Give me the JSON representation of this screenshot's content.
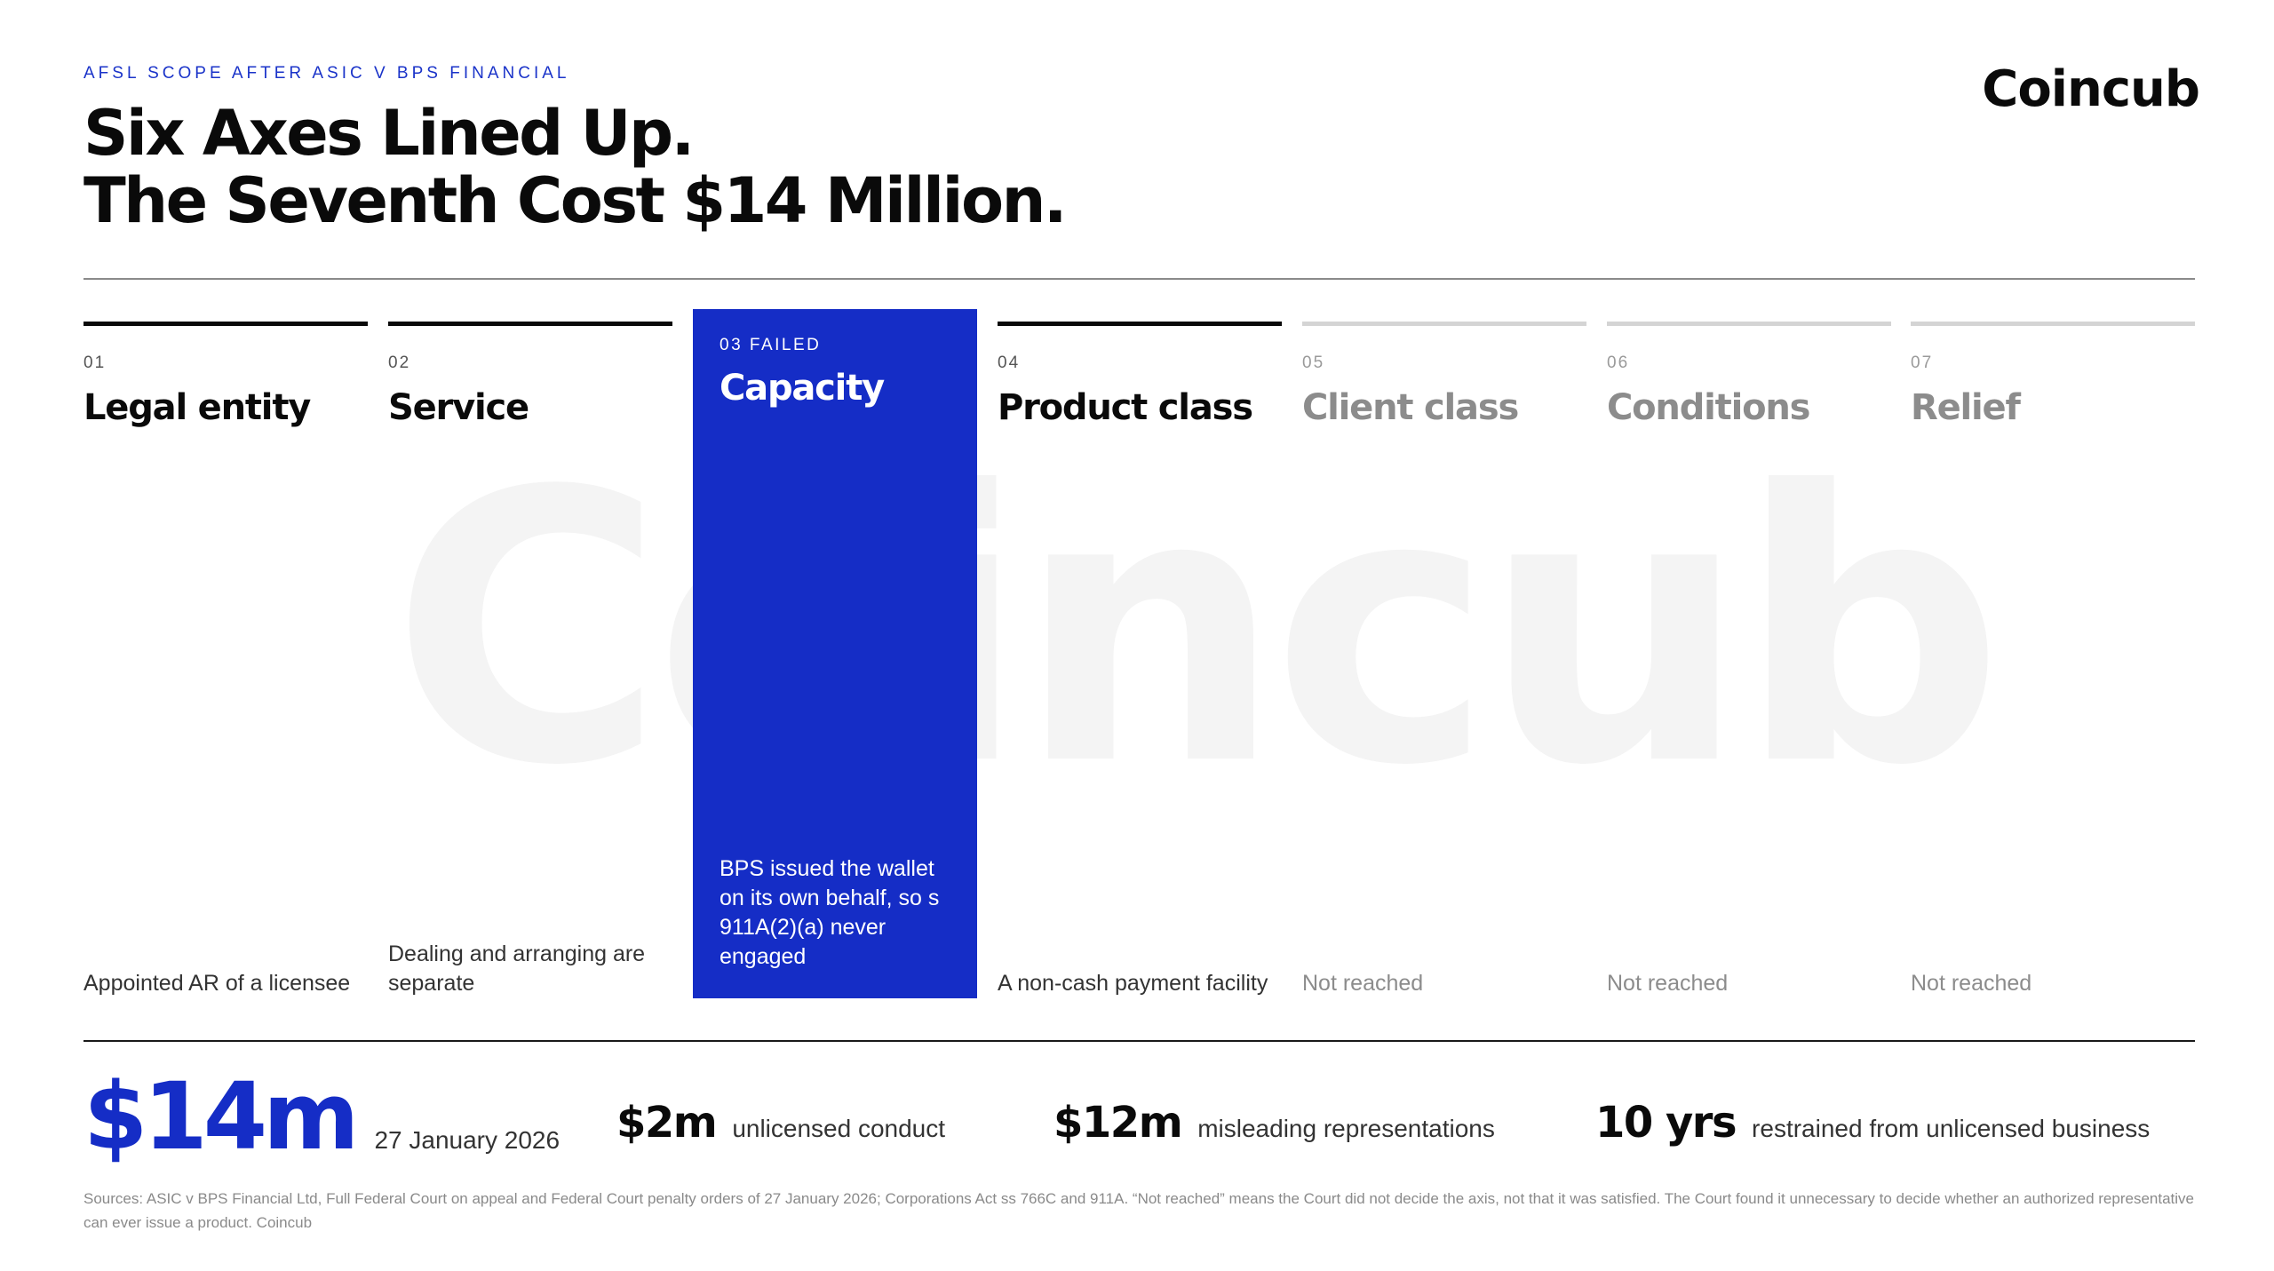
{
  "watermark": "Coincub",
  "header": {
    "eyebrow": "AFSL SCOPE AFTER ASIC V BPS FINANCIAL",
    "title_line1": "Six Axes Lined Up.",
    "title_line2": "The Seventh Cost $14 Million.",
    "brand": "Coincub"
  },
  "colors": {
    "accent": "#152dc6",
    "ink": "#0a0a0a",
    "muted": "#8c8c8c"
  },
  "axes": [
    {
      "num": "01",
      "name": "Legal entity",
      "note": "Appointed AR of a licensee",
      "state": "met"
    },
    {
      "num": "02",
      "name": "Service",
      "note": "Dealing and arranging are separate",
      "state": "met"
    },
    {
      "num": "03  FAILED",
      "name": "Capacity",
      "note": "BPS issued the wallet on its own behalf, so s 911A(2)(a) never engaged",
      "state": "failed"
    },
    {
      "num": "04",
      "name": "Product class",
      "note": "A non-cash payment facility",
      "state": "met"
    },
    {
      "num": "05",
      "name": "Client class",
      "note": "Not reached",
      "state": "not-reached"
    },
    {
      "num": "06",
      "name": "Conditions",
      "note": "Not reached",
      "state": "not-reached"
    },
    {
      "num": "07",
      "name": "Relief",
      "note": "Not reached",
      "state": "not-reached"
    }
  ],
  "stats": [
    {
      "value": "$14m",
      "label": "27 January 2026"
    },
    {
      "value": "$2m",
      "label": "unlicensed conduct"
    },
    {
      "value": "$12m",
      "label": "misleading representations"
    },
    {
      "value": "10 yrs",
      "label": "restrained from unlicensed business"
    }
  ],
  "sources": "Sources: ASIC v BPS Financial Ltd, Full Federal Court on appeal and Federal Court penalty orders of 27 January 2026; Corporations Act ss 766C and 911A. “Not reached” means the Court did not decide the axis, not that it was satisfied. The Court found it unnecessary to decide whether an authorized representative can ever issue a product. Coincub"
}
